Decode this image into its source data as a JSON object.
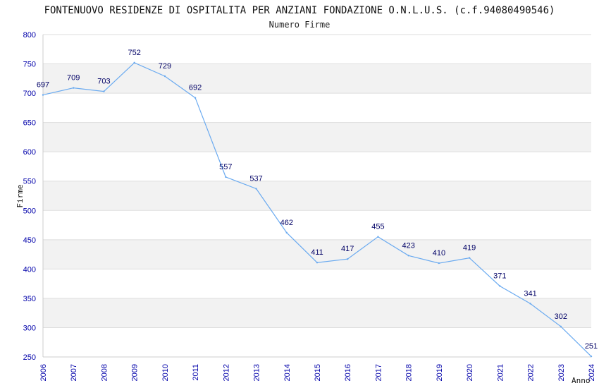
{
  "chart_data": {
    "type": "line",
    "title": "FONTENUOVO RESIDENZE DI OSPITALITA PER ANZIANI FONDAZIONE O.N.L.U.S. (c.f.94080490546)",
    "subtitle": "Numero Firme",
    "xlabel": "Anno",
    "ylabel": "Firme",
    "x": [
      "2006",
      "2007",
      "2008",
      "2009",
      "2010",
      "2011",
      "2012",
      "2013",
      "2014",
      "2015",
      "2016",
      "2017",
      "2018",
      "2019",
      "2020",
      "2021",
      "2022",
      "2023",
      "2024"
    ],
    "values": [
      697,
      709,
      703,
      752,
      729,
      692,
      557,
      537,
      462,
      411,
      417,
      455,
      423,
      410,
      419,
      371,
      341,
      302,
      251
    ],
    "ylim": [
      250,
      800
    ],
    "yticks": [
      250,
      300,
      350,
      400,
      450,
      500,
      550,
      600,
      650,
      700,
      750,
      800
    ],
    "grid": true,
    "colors": {
      "line": "#6aaaf0",
      "band": "#f2f2f2",
      "grid": "#dddddd",
      "tick_text": "#0000aa",
      "label_text": "#000066"
    }
  }
}
